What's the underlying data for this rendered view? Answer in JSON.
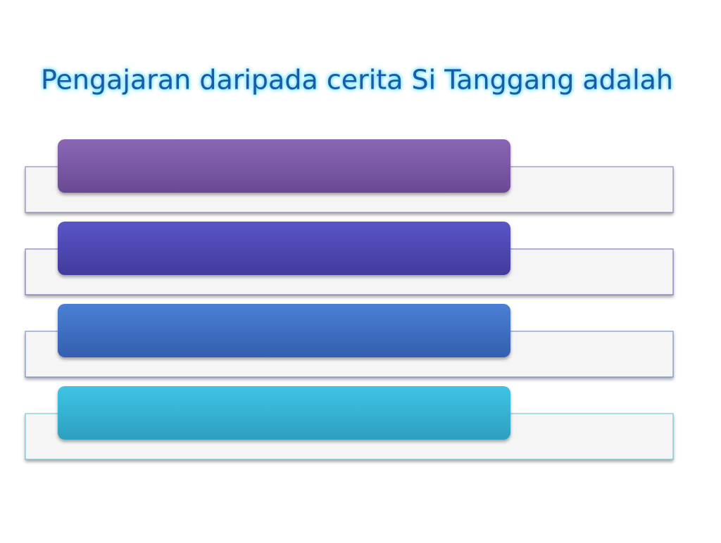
{
  "title": "Pengajaran daripada cerita Si Tanggang adalah"
}
